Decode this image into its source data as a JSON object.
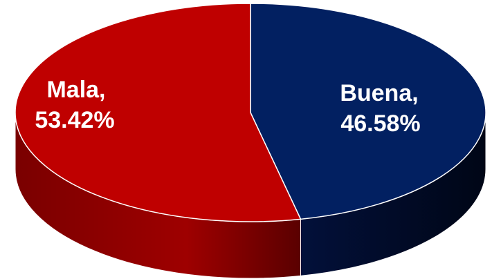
{
  "chart_data": {
    "type": "pie",
    "style": "3d",
    "title": "",
    "categories": [
      "Buena",
      "Mala"
    ],
    "values": [
      46.58,
      53.42
    ],
    "value_format": "percent",
    "labels": [
      {
        "category": "Buena,",
        "percent": "46.58%"
      },
      {
        "category": "Mala,",
        "percent": "53.42%"
      }
    ],
    "colors": {
      "Buena": "#022061",
      "Mala": "#bf0000",
      "Buena_side": "#010c28",
      "Mala_side": "#8c0000"
    },
    "legend": "none"
  }
}
